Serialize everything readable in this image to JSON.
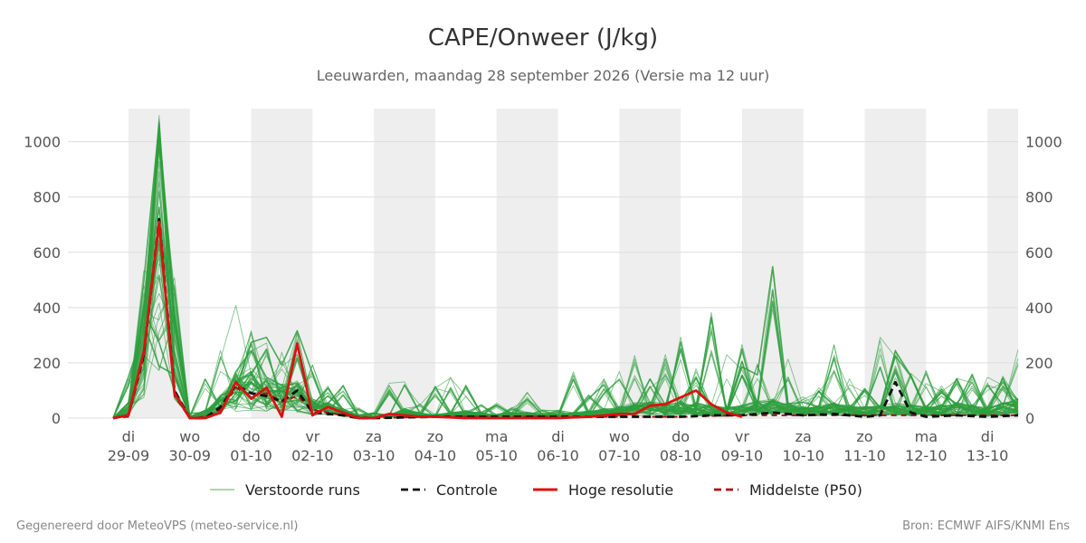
{
  "chart_data": {
    "type": "line",
    "title": "CAPE/Onweer (J/kg)",
    "subtitle": "Leeuwarden, maandag 28 september 2026 (Versie ma 12 uur)",
    "ylabel": "",
    "xlabel": "",
    "ylim": [
      0,
      1120
    ],
    "yticks": [
      0,
      200,
      400,
      600,
      800,
      1000
    ],
    "x_day_range": [
      -0.25,
      14.5
    ],
    "day_ticks": [
      {
        "day": 0,
        "label_top": "di",
        "label_bottom": "29-09"
      },
      {
        "day": 1,
        "label_top": "wo",
        "label_bottom": "30-09"
      },
      {
        "day": 2,
        "label_top": "do",
        "label_bottom": "01-10"
      },
      {
        "day": 3,
        "label_top": "vr",
        "label_bottom": "02-10"
      },
      {
        "day": 4,
        "label_top": "za",
        "label_bottom": "03-10"
      },
      {
        "day": 5,
        "label_top": "zo",
        "label_bottom": "04-10"
      },
      {
        "day": 6,
        "label_top": "ma",
        "label_bottom": "05-10"
      },
      {
        "day": 7,
        "label_top": "di",
        "label_bottom": "06-10"
      },
      {
        "day": 8,
        "label_top": "wo",
        "label_bottom": "07-10"
      },
      {
        "day": 9,
        "label_top": "do",
        "label_bottom": "08-10"
      },
      {
        "day": 10,
        "label_top": "vr",
        "label_bottom": "09-10"
      },
      {
        "day": 11,
        "label_top": "za",
        "label_bottom": "10-10"
      },
      {
        "day": 12,
        "label_top": "zo",
        "label_bottom": "11-10"
      },
      {
        "day": 13,
        "label_top": "ma",
        "label_bottom": "12-10"
      },
      {
        "day": 14,
        "label_top": "di",
        "label_bottom": "13-10"
      }
    ],
    "shaded_days": [
      [
        0,
        1
      ],
      [
        2,
        3
      ],
      [
        4,
        5
      ],
      [
        6,
        7
      ],
      [
        8,
        9
      ],
      [
        10,
        11
      ],
      [
        12,
        13
      ],
      [
        14,
        14.5
      ]
    ],
    "series": [
      {
        "name": "Hoge resolutie",
        "color": "#dd1111",
        "style": "solid",
        "x": [
          -0.25,
          0,
          0.25,
          0.5,
          0.75,
          1,
          1.25,
          1.5,
          1.75,
          2,
          2.25,
          2.5,
          2.75,
          3,
          3.25,
          3.5,
          3.75,
          4,
          4.25,
          4.5,
          4.75,
          5,
          5.5,
          6,
          6.5,
          7,
          7.5,
          8,
          8.25,
          8.5,
          8.75,
          9,
          9.25,
          9.5,
          9.75,
          10
        ],
        "y": [
          0,
          10,
          240,
          710,
          90,
          0,
          0,
          20,
          130,
          70,
          110,
          5,
          270,
          10,
          40,
          20,
          0,
          0,
          15,
          10,
          5,
          5,
          0,
          0,
          0,
          0,
          5,
          15,
          15,
          45,
          50,
          75,
          100,
          50,
          20,
          5
        ]
      },
      {
        "name": "Controle",
        "color": "#111111",
        "style": "dashed",
        "x": [
          -0.25,
          0,
          0.25,
          0.5,
          0.75,
          1,
          1.25,
          1.5,
          1.75,
          2,
          2.25,
          2.5,
          2.75,
          3,
          3.25,
          3.5,
          3.75,
          4,
          5,
          6,
          7,
          8,
          8.5,
          9,
          9.5,
          10,
          10.5,
          11,
          11.5,
          12,
          12.25,
          12.5,
          12.75,
          13,
          13.5,
          14,
          14.5
        ],
        "y": [
          0,
          10,
          230,
          720,
          100,
          0,
          0,
          40,
          120,
          90,
          80,
          60,
          100,
          20,
          15,
          10,
          0,
          0,
          5,
          5,
          5,
          5,
          5,
          5,
          10,
          10,
          20,
          10,
          15,
          5,
          10,
          130,
          20,
          5,
          10,
          5,
          10
        ]
      },
      {
        "name": "Middelste (P50)",
        "color": "#aa1111",
        "style": "dashed",
        "x": [
          -0.25,
          0,
          0.25,
          0.5,
          0.75,
          1,
          1.25,
          1.5,
          1.75,
          2,
          2.25,
          2.5,
          2.75,
          3,
          3.25,
          3.5,
          4,
          5,
          6,
          7,
          8,
          9,
          10,
          11,
          12,
          13,
          14,
          14.5
        ],
        "y": [
          0,
          5,
          220,
          700,
          80,
          0,
          5,
          30,
          110,
          80,
          90,
          60,
          80,
          30,
          20,
          10,
          0,
          5,
          5,
          5,
          5,
          5,
          10,
          10,
          10,
          10,
          10,
          10
        ]
      }
    ],
    "ensemble": {
      "name": "Verstoorde runs",
      "color": "#2e9e3e",
      "member_count": 50,
      "x": [
        -0.25,
        0,
        0.25,
        0.5,
        0.75,
        1,
        1.25,
        1.5,
        1.75,
        2,
        2.25,
        2.5,
        2.75,
        3,
        3.25,
        3.5,
        3.75,
        4,
        4.25,
        4.5,
        4.75,
        5,
        5.25,
        5.5,
        5.75,
        6,
        6.25,
        6.5,
        6.75,
        7,
        7.25,
        7.5,
        7.75,
        8,
        8.25,
        8.5,
        8.75,
        9,
        9.25,
        9.5,
        9.75,
        10,
        10.25,
        10.5,
        10.75,
        11,
        11.25,
        11.5,
        11.75,
        12,
        12.25,
        12.5,
        12.75,
        13,
        13.25,
        13.5,
        13.75,
        14,
        14.25,
        14.5
      ],
      "typical": [
        0,
        40,
        300,
        800,
        300,
        5,
        20,
        60,
        120,
        130,
        110,
        90,
        100,
        50,
        40,
        25,
        10,
        5,
        10,
        25,
        15,
        10,
        15,
        20,
        15,
        10,
        15,
        15,
        12,
        10,
        15,
        20,
        25,
        30,
        40,
        45,
        40,
        45,
        40,
        35,
        30,
        35,
        45,
        50,
        40,
        30,
        35,
        40,
        35,
        30,
        35,
        40,
        35,
        30,
        35,
        40,
        35,
        30,
        40,
        50
      ],
      "peak_max": [
        0,
        150,
        550,
        1105,
        520,
        20,
        150,
        250,
        490,
        320,
        300,
        250,
        330,
        220,
        120,
        140,
        40,
        20,
        130,
        145,
        70,
        130,
        155,
        125,
        50,
        55,
        40,
        95,
        30,
        30,
        180,
        90,
        145,
        170,
        240,
        165,
        240,
        310,
        180,
        400,
        235,
        270,
        240,
        555,
        230,
        80,
        120,
        265,
        150,
        110,
        330,
        250,
        225,
        175,
        120,
        150,
        160,
        165,
        160,
        250
      ]
    }
  },
  "legend": [
    {
      "key": "ensemble",
      "label": "Verstoorde runs",
      "color": "#2e9e3e",
      "style": "thin"
    },
    {
      "key": "control",
      "label": "Controle",
      "color": "#111111",
      "style": "dashed"
    },
    {
      "key": "hires",
      "label": "Hoge resolutie",
      "color": "#dd1111",
      "style": "solid"
    },
    {
      "key": "median",
      "label": "Middelste (P50)",
      "color": "#aa1111",
      "style": "dashed"
    }
  ],
  "footer": {
    "left": "Gegenereerd door MeteoVPS (meteo-service.nl)",
    "right": "Bron: ECMWF AIFS/KNMI Ens"
  },
  "colors": {
    "shade": "#eeeeee",
    "grid": "#dddddd"
  }
}
